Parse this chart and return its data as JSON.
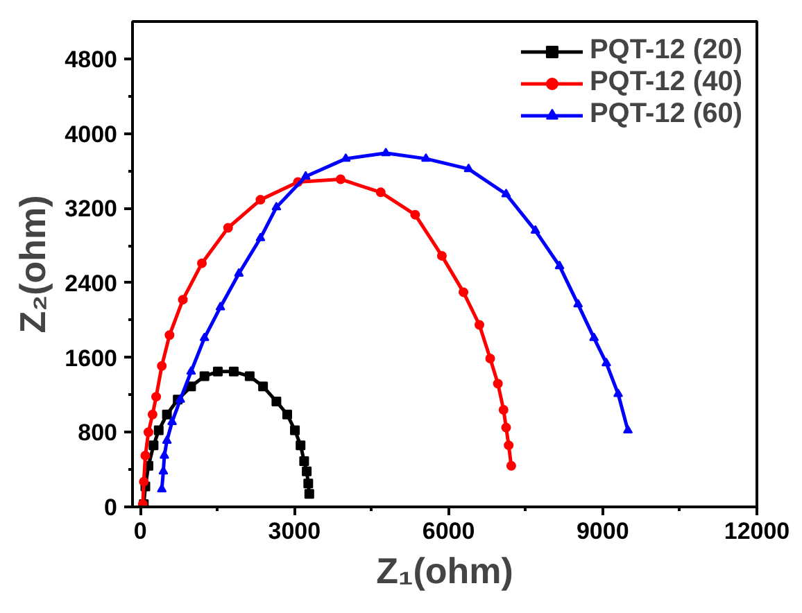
{
  "chart_data": {
    "type": "line",
    "xlabel": "Z₁(ohm)",
    "ylabel": "Z₂(ohm)",
    "xlim": [
      -150,
      12000
    ],
    "ylim": [
      0,
      5200
    ],
    "xticks": [
      0,
      3000,
      6000,
      9000,
      12000
    ],
    "yticks": [
      0,
      800,
      1600,
      2400,
      3200,
      4000,
      4800
    ],
    "grid": false,
    "legend": "top right",
    "line_style": "solid",
    "series": [
      {
        "name": "PQT-12 (20)",
        "color": "#000000",
        "marker": "square",
        "x": [
          70,
          100,
          160,
          260,
          360,
          520,
          730,
          990,
          1250,
          1510,
          1820,
          2130,
          2390,
          2650,
          2860,
          3010,
          3120,
          3190,
          3240,
          3270,
          3290
        ],
        "values": [
          30,
          220,
          440,
          660,
          820,
          990,
          1150,
          1290,
          1400,
          1450,
          1450,
          1400,
          1290,
          1130,
          990,
          820,
          660,
          490,
          380,
          250,
          140
        ]
      },
      {
        "name": "PQT-12 (40)",
        "color": "#ff0000",
        "marker": "circle",
        "x": [
          50,
          70,
          100,
          160,
          240,
          310,
          420,
          570,
          830,
          1200,
          1710,
          2340,
          3070,
          3900,
          4680,
          5350,
          5870,
          6290,
          6600,
          6810,
          6960,
          7070,
          7120,
          7170,
          7220
        ],
        "values": [
          30,
          270,
          550,
          800,
          990,
          1180,
          1510,
          1840,
          2220,
          2610,
          2990,
          3290,
          3480,
          3510,
          3370,
          3130,
          2690,
          2300,
          1950,
          1590,
          1320,
          1040,
          850,
          660,
          440
        ]
      },
      {
        "name": "PQT-12 (60)",
        "color": "#0000ff",
        "marker": "triangle",
        "x": [
          420,
          450,
          470,
          520,
          620,
          780,
          990,
          1250,
          1560,
          1920,
          2340,
          2650,
          3220,
          4000,
          4780,
          5560,
          6390,
          7120,
          7690,
          8160,
          8520,
          8830,
          9070,
          9300,
          9490
        ],
        "values": [
          190,
          380,
          550,
          710,
          910,
          1150,
          1450,
          1810,
          2140,
          2500,
          2880,
          3210,
          3540,
          3730,
          3790,
          3730,
          3620,
          3350,
          2960,
          2580,
          2170,
          1810,
          1540,
          1210,
          820
        ]
      }
    ]
  }
}
